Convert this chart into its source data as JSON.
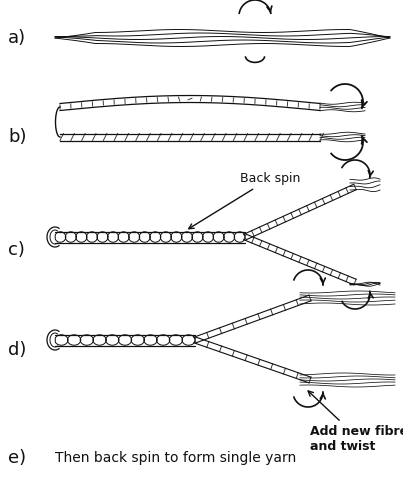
{
  "bg_color": "#ffffff",
  "line_color": "#111111",
  "fig_width": 4.03,
  "fig_height": 5.0,
  "dpi": 100,
  "labels": {
    "a": "a)",
    "b": "b)",
    "c": "c)",
    "d": "d)",
    "e": "e)"
  },
  "annotations": {
    "back_spin": "Back spin",
    "add_fibre": "Add new fibre\nand twist",
    "then_back": "Then back spin to form single yarn"
  },
  "label_fontsize": 13,
  "annot_fontsize": 8.5,
  "body_fontsize": 10
}
